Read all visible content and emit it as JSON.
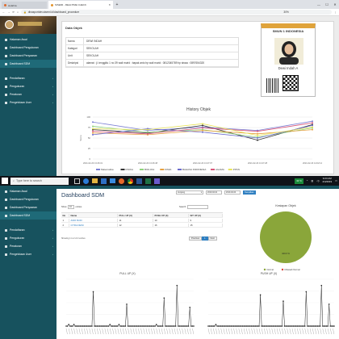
{
  "browser": {
    "tab1": "siolahra",
    "tab2": "SISEMI - REALTIME CHECK",
    "url": "dinasportdev.sisemi.id/dashboard_procedure",
    "zoom": "30%"
  },
  "top_sidebar": {
    "items": [
      {
        "label": "Halaman Awal"
      },
      {
        "label": "Dashboard Pengukuran"
      },
      {
        "label": "Dashboard Penyaaran"
      },
      {
        "label": "Dashboard SDM"
      },
      {
        "label": "Pendaftaran"
      },
      {
        "label": "Pengukuran"
      },
      {
        "label": "Peraturan"
      },
      {
        "label": "Pengelolaan User"
      }
    ]
  },
  "data_objek": {
    "section_title": "Data Objek",
    "rows": [
      {
        "label": "Nama",
        "value": "DEWI INDAH"
      },
      {
        "label": "Kategori",
        "value": "SEKOLAH"
      },
      {
        "label": "Unit",
        "value": "SEKOLAH"
      },
      {
        "label": "Deskripsi",
        "value": "alamat : jl. tenggiliu 1 no 39 wali murid : bapak anto hp wali murid : 0812345789 hp siswa : 0897654320"
      }
    ]
  },
  "id_card": {
    "school": "SMUN 1 INDONESIA",
    "name": "Dewi Indah A"
  },
  "history_chart": {
    "chart_data": {
      "type": "line",
      "title": "History Objek",
      "ylabel": "Score",
      "ylim": [
        0,
        100
      ],
      "yticks": [
        "100",
        "75",
        "50",
        "25",
        "0"
      ],
      "categories": [
        "2021-02-23 13:46:31",
        "2021-02-23 13:46:48",
        "2021-02-23 13:47:07",
        "2021-02-23 13:47:28",
        "2021-02-23 14:02:12"
      ],
      "series": [
        {
          "name": "Matematika",
          "color": "#7b7fd4",
          "values": [
            88,
            68,
            76,
            68,
            90
          ]
        },
        {
          "name": "FISIKA",
          "color": "#333333",
          "values": [
            70,
            62,
            80,
            45,
            82
          ]
        },
        {
          "name": "BIOLOGI",
          "color": "#8fd47b",
          "values": [
            78,
            64,
            70,
            52,
            74
          ]
        },
        {
          "name": "KIMIA",
          "color": "#e6a040",
          "values": [
            62,
            58,
            68,
            60,
            70
          ]
        },
        {
          "name": "BAHASA INDONESIA",
          "color": "#6b6bcc",
          "values": [
            58,
            72,
            64,
            50,
            80
          ]
        },
        {
          "name": "AGAMA",
          "color": "#d9577a",
          "values": [
            66,
            60,
            74,
            66,
            86
          ]
        },
        {
          "name": "PPKN",
          "color": "#e8e45a",
          "values": [
            72,
            70,
            84,
            56,
            76
          ]
        }
      ]
    }
  },
  "taskbar": {
    "search_placeholder": "Type here to search",
    "temp": "31°C",
    "time": "9:23 AM",
    "date": "2/4/2019"
  },
  "bottom_sidebar": {
    "items": [
      {
        "label": "Halaman Awal"
      },
      {
        "label": "Dashboard Pengukuran"
      },
      {
        "label": "Dashboard Penyaaran"
      },
      {
        "label": "Dashboard SDM"
      },
      {
        "label": "Pendaftaran"
      },
      {
        "label": "Pengukuran"
      },
      {
        "label": "Peraturan"
      },
      {
        "label": "Pengelolaan User"
      }
    ]
  },
  "sdm": {
    "title": "Dashboard SDM",
    "filter_select": "Jenjang",
    "filter_from": "2019-02-01",
    "filter_to": "2019-02-04",
    "filter_button": "Tampilkan",
    "show_label": "Show",
    "show_value": "10",
    "entries_label": "entries",
    "search_label": "Search:",
    "table_headers": [
      "No",
      "Nama",
      "PULL UP (X)",
      "PUSH UP (X)",
      "SIT UP (X)"
    ],
    "table_rows": [
      [
        "1",
        "ANDI BUDI",
        "11",
        "10",
        "9"
      ],
      [
        "2",
        "CITRA DEWI",
        "12",
        "16",
        "15"
      ]
    ],
    "info": "Showing 1 to 2 of 2 entries",
    "pager_prev": "Previous",
    "pager_page": "1",
    "pager_next": "Next"
  },
  "pie": {
    "chart_data": {
      "type": "pie",
      "title": "Kesiapan Objek",
      "slices": [
        {
          "label": "Normal",
          "value": 100,
          "color": "#8aa63a"
        },
        {
          "label": "Dibawah Normal",
          "value": 0,
          "color": "#d9443a"
        }
      ],
      "slice_label": "100.0 %"
    }
  },
  "charts_bottom": {
    "chart_data": [
      {
        "type": "line",
        "title": "PULL UP (X)",
        "ylim": [
          0,
          30
        ],
        "series": [
          {
            "name": "",
            "values": [
              0,
              0,
              1,
              0,
              0,
              0,
              1,
              0,
              0,
              0,
              0,
              0,
              0,
              0,
              0,
              0,
              0,
              0,
              0,
              0,
              0,
              22,
              0,
              0,
              0,
              0,
              0,
              0,
              0,
              0,
              0,
              0,
              0,
              0,
              1,
              0,
              0,
              0,
              0,
              0,
              0,
              1,
              0,
              0,
              0,
              0,
              0,
              14,
              0,
              0,
              0,
              0,
              0,
              0,
              0,
              0,
              0,
              0,
              0,
              0,
              0,
              0,
              0,
              0,
              0,
              0,
              0,
              0,
              0,
              0,
              1,
              0,
              0,
              0,
              0,
              0,
              18,
              0,
              0,
              0,
              0,
              0,
              0,
              0,
              0,
              0,
              26,
              0,
              0,
              0,
              0,
              0,
              0,
              0,
              0,
              0,
              12,
              0,
              0,
              0
            ]
          }
        ]
      },
      {
        "type": "line",
        "title": "PUSH UP (X)",
        "ylim": [
          0,
          30
        ],
        "series": [
          {
            "name": "",
            "values": [
              0,
              0,
              0,
              0,
              0,
              0,
              1,
              0,
              0,
              0,
              0,
              0,
              0,
              0,
              0,
              0,
              0,
              0,
              0,
              0,
              0,
              0,
              0,
              0,
              0,
              0,
              0,
              0,
              0,
              0,
              0,
              0,
              0,
              0,
              0,
              0,
              0,
              0,
              0,
              0,
              0,
              20,
              0,
              0,
              0,
              0,
              0,
              0,
              0,
              0,
              0,
              0,
              0,
              0,
              0,
              0,
              0,
              0,
              0,
              16,
              0,
              0,
              0,
              0,
              0,
              0,
              0,
              0,
              0,
              0,
              0,
              0,
              0,
              0,
              0,
              0,
              0,
              22,
              0,
              0,
              0,
              0,
              0,
              0,
              0,
              0,
              0,
              0,
              0,
              26,
              0,
              0,
              0,
              0,
              0,
              14,
              0,
              0,
              0,
              0
            ]
          }
        ]
      }
    ]
  }
}
